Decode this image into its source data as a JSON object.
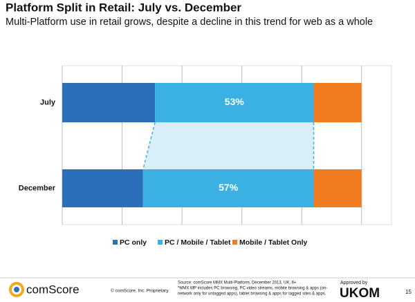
{
  "chart_data": {
    "type": "stacked-bar-horizontal",
    "title": "Platform Split in Retail: July vs. December",
    "subtitle": "Multi-Platform use in retail grows, despite a decline in this trend for web as a whole",
    "categories": [
      "July",
      "December"
    ],
    "series": [
      {
        "name": "PC only",
        "color": "#2a6fb7",
        "values": [
          31,
          27
        ]
      },
      {
        "name": "PC / Mobile / Tablet",
        "color": "#3bb1e3",
        "values": [
          53,
          57
        ],
        "value_labels": [
          "53%",
          "57%"
        ]
      },
      {
        "name": "Mobile / Tablet Only",
        "color": "#f07c1f",
        "values": [
          16,
          16
        ]
      }
    ],
    "xlim": [
      0,
      110
    ],
    "xticks": [
      0,
      20,
      40,
      60,
      80,
      100
    ],
    "grid": true
  },
  "footer": {
    "brand": "comScore",
    "copyright": "© comScore, Inc.   Proprietary.",
    "source": [
      "Source: comScore MMX Multi-Platform, December 2013, UK, 6+",
      "*MMX MP includes PC browsing, PC video streams, mobile browsing & apps (on-",
      "network only for untagged apps), tablet browsing & apps for tagged sites & apps."
    ],
    "approved": "Approved by",
    "ukom": "UKOM",
    "page": "15"
  }
}
